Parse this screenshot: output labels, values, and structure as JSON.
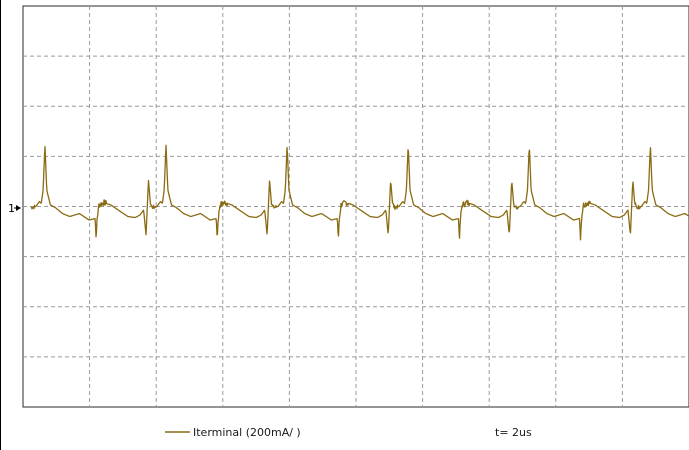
{
  "chart_data": {
    "type": "line",
    "grid": true,
    "grid_divisions": {
      "x": 10,
      "y": 8
    },
    "series": [
      {
        "name": "Iterminal (200mA/ )",
        "color": "#8a6a12",
        "shape": "periodic pulse train",
        "waveform_unit": "div",
        "periods_visible": 5.5,
        "baseline_div": 0,
        "peak_div": 1.25,
        "negative_spike_div": -0.65,
        "one_period": {
          "t": [
            0,
            0.04,
            0.07,
            0.085,
            0.1,
            0.115,
            0.13,
            0.16,
            0.2,
            0.26,
            0.32,
            0.4,
            0.48,
            0.53,
            0.538,
            0.545,
            0.56,
            0.6,
            0.66,
            0.72,
            0.8,
            0.86,
            0.9,
            0.93,
            0.95,
            0.97,
            0.985,
            1.0
          ],
          "v": [
            0,
            0.02,
            0.12,
            0.08,
            0.35,
            1.25,
            0.35,
            0.05,
            0.0,
            -0.12,
            -0.18,
            -0.12,
            -0.25,
            -0.22,
            -0.65,
            -0.25,
            0.05,
            0.1,
            0.05,
            -0.05,
            -0.18,
            -0.2,
            -0.15,
            -0.05,
            -0.55,
            0.55,
            0.1,
            0
          ]
        }
      }
    ]
  },
  "channel_marker": "1",
  "timebase": "t= 2us"
}
